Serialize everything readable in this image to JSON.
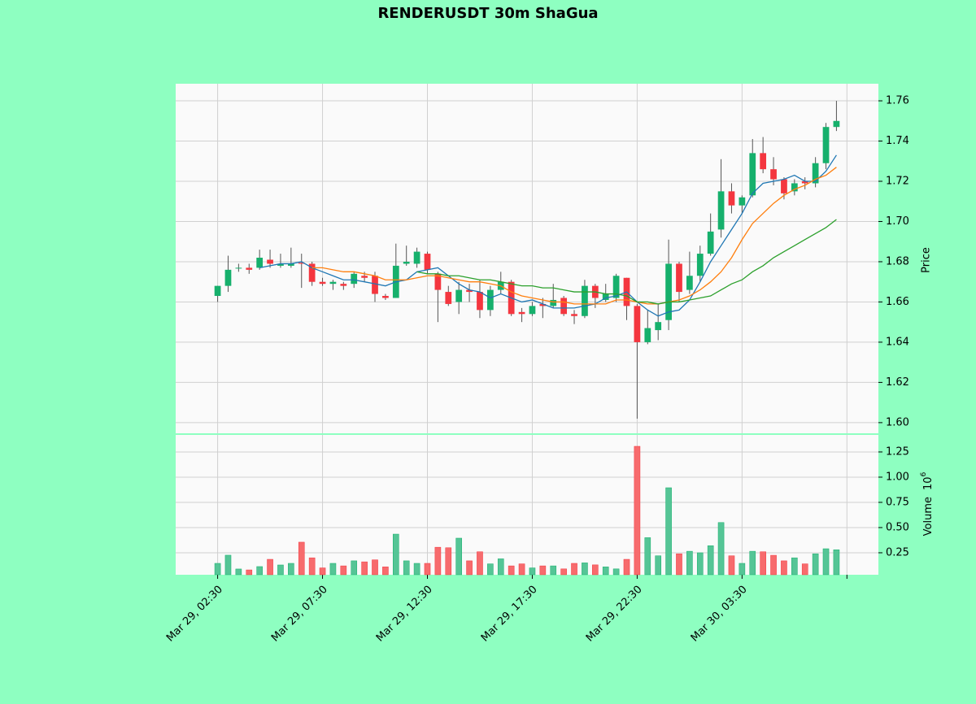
{
  "chart_data": {
    "type": "candlestick",
    "title": "RENDERUSDT 30m ShaGua",
    "ylabel": "Price",
    "volume_label": "Volume",
    "volume_scale": {
      "base": "10",
      "exponent": "6"
    },
    "up_color": "#16b06c",
    "down_color": "#f4363f",
    "volume_up_color": "#55c596",
    "volume_down_color": "#f76b6d",
    "grid": true,
    "xlim": [
      -4,
      63
    ],
    "xticks": [
      {
        "value": 0,
        "label": "Mar 29, 02:30"
      },
      {
        "value": 10,
        "label": "Mar 29, 07:30"
      },
      {
        "value": 20,
        "label": "Mar 29, 12:30"
      },
      {
        "value": 30,
        "label": "Mar 29, 17:30"
      },
      {
        "value": 40,
        "label": "Mar 29, 22:30"
      },
      {
        "value": 50,
        "label": "Mar 30, 03:30"
      },
      {
        "value": 60,
        "label": null
      }
    ],
    "ylim": [
      1.5947,
      1.7685
    ],
    "yticks": [
      {
        "value": 1.6,
        "label": "1.60"
      },
      1.62,
      1.64,
      1.66,
      1.68,
      {
        "value": 1.7,
        "label": "1.70"
      },
      1.72,
      1.74,
      1.76
    ],
    "y2lim": [
      0.032,
      1.419
    ],
    "y2ticks": [
      0.25,
      {
        "value": 0.5,
        "label": "0.50"
      },
      0.75,
      {
        "value": 1,
        "label": "1.00"
      },
      1.25
    ],
    "open": [
      1.663,
      1.668,
      1.677,
      1.677,
      1.677,
      1.681,
      1.678,
      1.678,
      1.6795,
      1.679,
      1.67,
      1.669,
      1.669,
      1.669,
      1.673,
      1.673,
      1.663,
      1.662,
      1.679,
      1.679,
      1.684,
      1.674,
      1.665,
      1.66,
      1.666,
      1.665,
      1.656,
      1.666,
      1.67,
      1.655,
      1.654,
      1.659,
      1.658,
      1.662,
      1.654,
      1.653,
      1.668,
      1.661,
      1.662,
      1.672,
      1.658,
      1.64,
      1.646,
      1.651,
      1.679,
      1.666,
      1.673,
      1.684,
      1.696,
      1.715,
      1.708,
      1.713,
      1.734,
      1.726,
      1.721,
      1.715,
      1.72,
      1.719,
      1.729,
      1.747
    ],
    "high": [
      1.668,
      1.683,
      1.679,
      1.679,
      1.686,
      1.686,
      1.684,
      1.687,
      1.684,
      1.68,
      1.672,
      1.671,
      1.67,
      1.675,
      1.675,
      1.675,
      1.664,
      1.689,
      1.688,
      1.687,
      1.685,
      1.675,
      1.668,
      1.67,
      1.669,
      1.671,
      1.668,
      1.675,
      1.671,
      1.657,
      1.66,
      1.662,
      1.669,
      1.663,
      1.656,
      1.671,
      1.669,
      1.669,
      1.674,
      1.672,
      1.659,
      1.656,
      1.659,
      1.691,
      1.68,
      1.685,
      1.688,
      1.704,
      1.731,
      1.719,
      1.713,
      1.741,
      1.742,
      1.732,
      1.722,
      1.721,
      1.722,
      1.732,
      1.749,
      1.76
    ],
    "low": [
      1.66,
      1.665,
      1.675,
      1.674,
      1.676,
      1.677,
      1.677,
      1.677,
      1.667,
      1.668,
      1.668,
      1.666,
      1.666,
      1.667,
      1.67,
      1.66,
      1.661,
      1.662,
      1.678,
      1.677,
      1.674,
      1.65,
      1.658,
      1.654,
      1.66,
      1.652,
      1.653,
      1.664,
      1.653,
      1.65,
      1.653,
      1.652,
      1.657,
      1.653,
      1.649,
      1.652,
      1.657,
      1.66,
      1.66,
      1.651,
      1.602,
      1.639,
      1.641,
      1.646,
      1.66,
      1.664,
      1.67,
      1.683,
      1.692,
      1.704,
      1.704,
      1.712,
      1.724,
      1.718,
      1.711,
      1.713,
      1.716,
      1.717,
      1.726,
      1.745
    ],
    "close": [
      1.668,
      1.676,
      1.677,
      1.676,
      1.682,
      1.679,
      1.679,
      1.679,
      1.679,
      1.67,
      1.669,
      1.67,
      1.668,
      1.674,
      1.672,
      1.664,
      1.662,
      1.678,
      1.68,
      1.685,
      1.676,
      1.666,
      1.659,
      1.666,
      1.665,
      1.656,
      1.666,
      1.67,
      1.654,
      1.654,
      1.658,
      1.658,
      1.661,
      1.654,
      1.653,
      1.668,
      1.662,
      1.664,
      1.673,
      1.658,
      1.64,
      1.647,
      1.65,
      1.679,
      1.665,
      1.673,
      1.684,
      1.695,
      1.715,
      1.708,
      1.712,
      1.734,
      1.726,
      1.721,
      1.714,
      1.719,
      1.719,
      1.729,
      1.747,
      1.75
    ],
    "volume": [
      0.145,
      0.226,
      0.089,
      0.08,
      0.113,
      0.185,
      0.129,
      0.145,
      0.355,
      0.2,
      0.1,
      0.145,
      0.12,
      0.17,
      0.16,
      0.18,
      0.11,
      0.435,
      0.17,
      0.145,
      0.145,
      0.305,
      0.3,
      0.395,
      0.17,
      0.26,
      0.14,
      0.19,
      0.12,
      0.14,
      0.1,
      0.12,
      0.12,
      0.09,
      0.145,
      0.15,
      0.13,
      0.11,
      0.09,
      0.185,
      1.306,
      0.4,
      0.22,
      0.895,
      0.24,
      0.265,
      0.25,
      0.32,
      0.55,
      0.22,
      0.145,
      0.265,
      0.26,
      0.225,
      0.17,
      0.2,
      0.14,
      0.24,
      0.29,
      0.28
    ],
    "moving_averages": [
      {
        "color": "#1f77b4",
        "values": [
          null,
          null,
          null,
          null,
          1.677,
          1.678,
          1.679,
          1.679,
          1.68,
          1.677,
          1.675,
          1.673,
          1.671,
          1.671,
          1.67,
          1.669,
          1.668,
          1.67,
          1.671,
          1.675,
          1.676,
          1.677,
          1.673,
          1.669,
          1.666,
          1.665,
          1.662,
          1.664,
          1.662,
          1.66,
          1.661,
          1.659,
          1.657,
          1.657,
          1.657,
          1.658,
          1.659,
          1.662,
          1.663,
          1.665,
          1.66,
          1.656,
          1.653,
          1.655,
          1.656,
          1.661,
          1.67,
          1.68,
          1.688,
          1.696,
          1.704,
          1.714,
          1.719,
          1.72,
          1.721,
          1.723,
          1.72,
          1.72,
          1.725,
          1.733
        ]
      },
      {
        "color": "#ff7f0e",
        "values": [
          null,
          null,
          null,
          null,
          null,
          null,
          null,
          null,
          null,
          1.677,
          1.677,
          1.676,
          1.675,
          1.675,
          1.674,
          1.673,
          1.671,
          1.671,
          1.671,
          1.672,
          1.673,
          1.673,
          1.672,
          1.671,
          1.67,
          1.67,
          1.669,
          1.668,
          1.665,
          1.663,
          1.662,
          1.661,
          1.66,
          1.66,
          1.659,
          1.659,
          1.659,
          1.659,
          1.661,
          1.661,
          1.66,
          1.659,
          1.659,
          1.66,
          1.661,
          1.663,
          1.666,
          1.67,
          1.675,
          1.682,
          1.691,
          1.699,
          1.704,
          1.709,
          1.713,
          1.716,
          1.718,
          1.721,
          1.723,
          1.727
        ]
      },
      {
        "color": "#2ca02c",
        "values": [
          null,
          null,
          null,
          null,
          null,
          null,
          null,
          null,
          null,
          null,
          null,
          null,
          null,
          null,
          null,
          null,
          null,
          null,
          null,
          1.675,
          1.674,
          1.674,
          1.673,
          1.673,
          1.672,
          1.671,
          1.671,
          1.67,
          1.669,
          1.668,
          1.668,
          1.667,
          1.667,
          1.666,
          1.665,
          1.665,
          1.665,
          1.664,
          1.664,
          1.663,
          1.66,
          1.66,
          1.659,
          1.66,
          1.66,
          1.661,
          1.662,
          1.663,
          1.666,
          1.669,
          1.671,
          1.675,
          1.678,
          1.682,
          1.685,
          1.688,
          1.691,
          1.694,
          1.697,
          1.701
        ]
      }
    ]
  }
}
